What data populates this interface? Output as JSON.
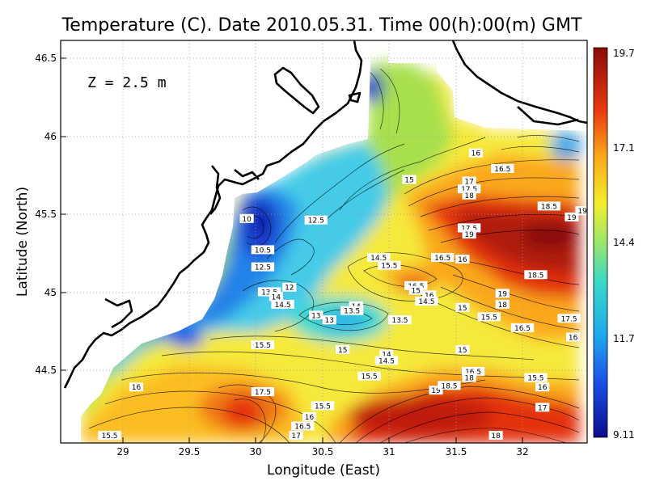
{
  "title": "Temperature (C). Date 2010.05.31. Time 00(h):00(m) GMT",
  "depth_label": "Z = 2.5 m",
  "x_axis": {
    "label": "Longitude (East)",
    "ticks": [
      "29",
      "29.5",
      "30",
      "30.5",
      "31",
      "31.5",
      "32"
    ]
  },
  "y_axis": {
    "label": "Latitude (North)",
    "ticks": [
      "46.5",
      "46",
      "45.5",
      "45",
      "44.5"
    ]
  },
  "colorbar": {
    "ticks": [
      "19.7",
      "17.1",
      "14.4",
      "11.7",
      "9.11"
    ],
    "min": 9.11,
    "max": 19.7
  },
  "contour_labels": [
    {
      "t": "16",
      "lon": 31.65,
      "lat": 45.89
    },
    {
      "t": "16.5",
      "lon": 31.85,
      "lat": 45.79
    },
    {
      "t": "15",
      "lon": 31.15,
      "lat": 45.72
    },
    {
      "t": "17",
      "lon": 31.6,
      "lat": 45.71
    },
    {
      "t": "17.5",
      "lon": 31.6,
      "lat": 45.66
    },
    {
      "t": "18",
      "lon": 31.6,
      "lat": 45.62
    },
    {
      "t": "18.5",
      "lon": 32.2,
      "lat": 45.55
    },
    {
      "t": "19",
      "lon": 32.37,
      "lat": 45.48
    },
    {
      "t": "19",
      "lon": 32.45,
      "lat": 45.52
    },
    {
      "t": "17.5",
      "lon": 31.6,
      "lat": 45.41
    },
    {
      "t": "19",
      "lon": 31.6,
      "lat": 45.37
    },
    {
      "t": "16.5",
      "lon": 31.4,
      "lat": 45.22
    },
    {
      "t": "16",
      "lon": 31.55,
      "lat": 45.21
    },
    {
      "t": "14.5",
      "lon": 30.92,
      "lat": 45.22
    },
    {
      "t": "15.5",
      "lon": 31.0,
      "lat": 45.17
    },
    {
      "t": "18.5",
      "lon": 32.1,
      "lat": 45.11
    },
    {
      "t": "16.5",
      "lon": 31.2,
      "lat": 45.04
    },
    {
      "t": "15",
      "lon": 31.2,
      "lat": 45.01
    },
    {
      "t": "16",
      "lon": 31.3,
      "lat": 44.98
    },
    {
      "t": "14.5",
      "lon": 31.28,
      "lat": 44.94
    },
    {
      "t": "19",
      "lon": 31.85,
      "lat": 44.99
    },
    {
      "t": "18",
      "lon": 31.85,
      "lat": 44.92
    },
    {
      "t": "15",
      "lon": 31.55,
      "lat": 44.9
    },
    {
      "t": "15.5",
      "lon": 31.75,
      "lat": 44.84
    },
    {
      "t": "17.5",
      "lon": 32.35,
      "lat": 44.83
    },
    {
      "t": "16.5",
      "lon": 32.0,
      "lat": 44.77
    },
    {
      "t": "16",
      "lon": 32.38,
      "lat": 44.71
    },
    {
      "t": "10",
      "lon": 29.93,
      "lat": 45.47
    },
    {
      "t": "12.5",
      "lon": 30.45,
      "lat": 45.46
    },
    {
      "t": "10.5",
      "lon": 30.05,
      "lat": 45.27
    },
    {
      "t": "12.5",
      "lon": 30.05,
      "lat": 45.16
    },
    {
      "t": "12",
      "lon": 30.25,
      "lat": 45.03
    },
    {
      "t": "13.5",
      "lon": 30.1,
      "lat": 45.0
    },
    {
      "t": "14",
      "lon": 30.15,
      "lat": 44.97
    },
    {
      "t": "14.5",
      "lon": 30.2,
      "lat": 44.92
    },
    {
      "t": "13",
      "lon": 30.45,
      "lat": 44.85
    },
    {
      "t": "13",
      "lon": 30.55,
      "lat": 44.82
    },
    {
      "t": "14",
      "lon": 30.75,
      "lat": 44.91
    },
    {
      "t": "13.5",
      "lon": 30.72,
      "lat": 44.88
    },
    {
      "t": "13.5",
      "lon": 31.08,
      "lat": 44.82
    },
    {
      "t": "15.5",
      "lon": 30.05,
      "lat": 44.66
    },
    {
      "t": "15",
      "lon": 30.65,
      "lat": 44.63
    },
    {
      "t": "14",
      "lon": 30.98,
      "lat": 44.6
    },
    {
      "t": "14.5",
      "lon": 30.98,
      "lat": 44.56
    },
    {
      "t": "15",
      "lon": 31.55,
      "lat": 44.63
    },
    {
      "t": "16.5",
      "lon": 31.63,
      "lat": 44.49
    },
    {
      "t": "15.5",
      "lon": 30.85,
      "lat": 44.46
    },
    {
      "t": "18",
      "lon": 31.6,
      "lat": 44.45
    },
    {
      "t": "19",
      "lon": 31.35,
      "lat": 44.37
    },
    {
      "t": "18.5",
      "lon": 31.45,
      "lat": 44.4
    },
    {
      "t": "15.5",
      "lon": 32.1,
      "lat": 44.45
    },
    {
      "t": "16",
      "lon": 32.15,
      "lat": 44.39
    },
    {
      "t": "16",
      "lon": 29.1,
      "lat": 44.39
    },
    {
      "t": "17.5",
      "lon": 30.05,
      "lat": 44.36
    },
    {
      "t": "15.5",
      "lon": 30.5,
      "lat": 44.27
    },
    {
      "t": "16",
      "lon": 30.4,
      "lat": 44.2
    },
    {
      "t": "16.5",
      "lon": 30.35,
      "lat": 44.14
    },
    {
      "t": "17",
      "lon": 30.3,
      "lat": 44.08
    },
    {
      "t": "17",
      "lon": 32.15,
      "lat": 44.26
    },
    {
      "t": "18",
      "lon": 31.8,
      "lat": 44.08
    },
    {
      "t": "15.5",
      "lon": 28.9,
      "lat": 44.08
    }
  ]
}
